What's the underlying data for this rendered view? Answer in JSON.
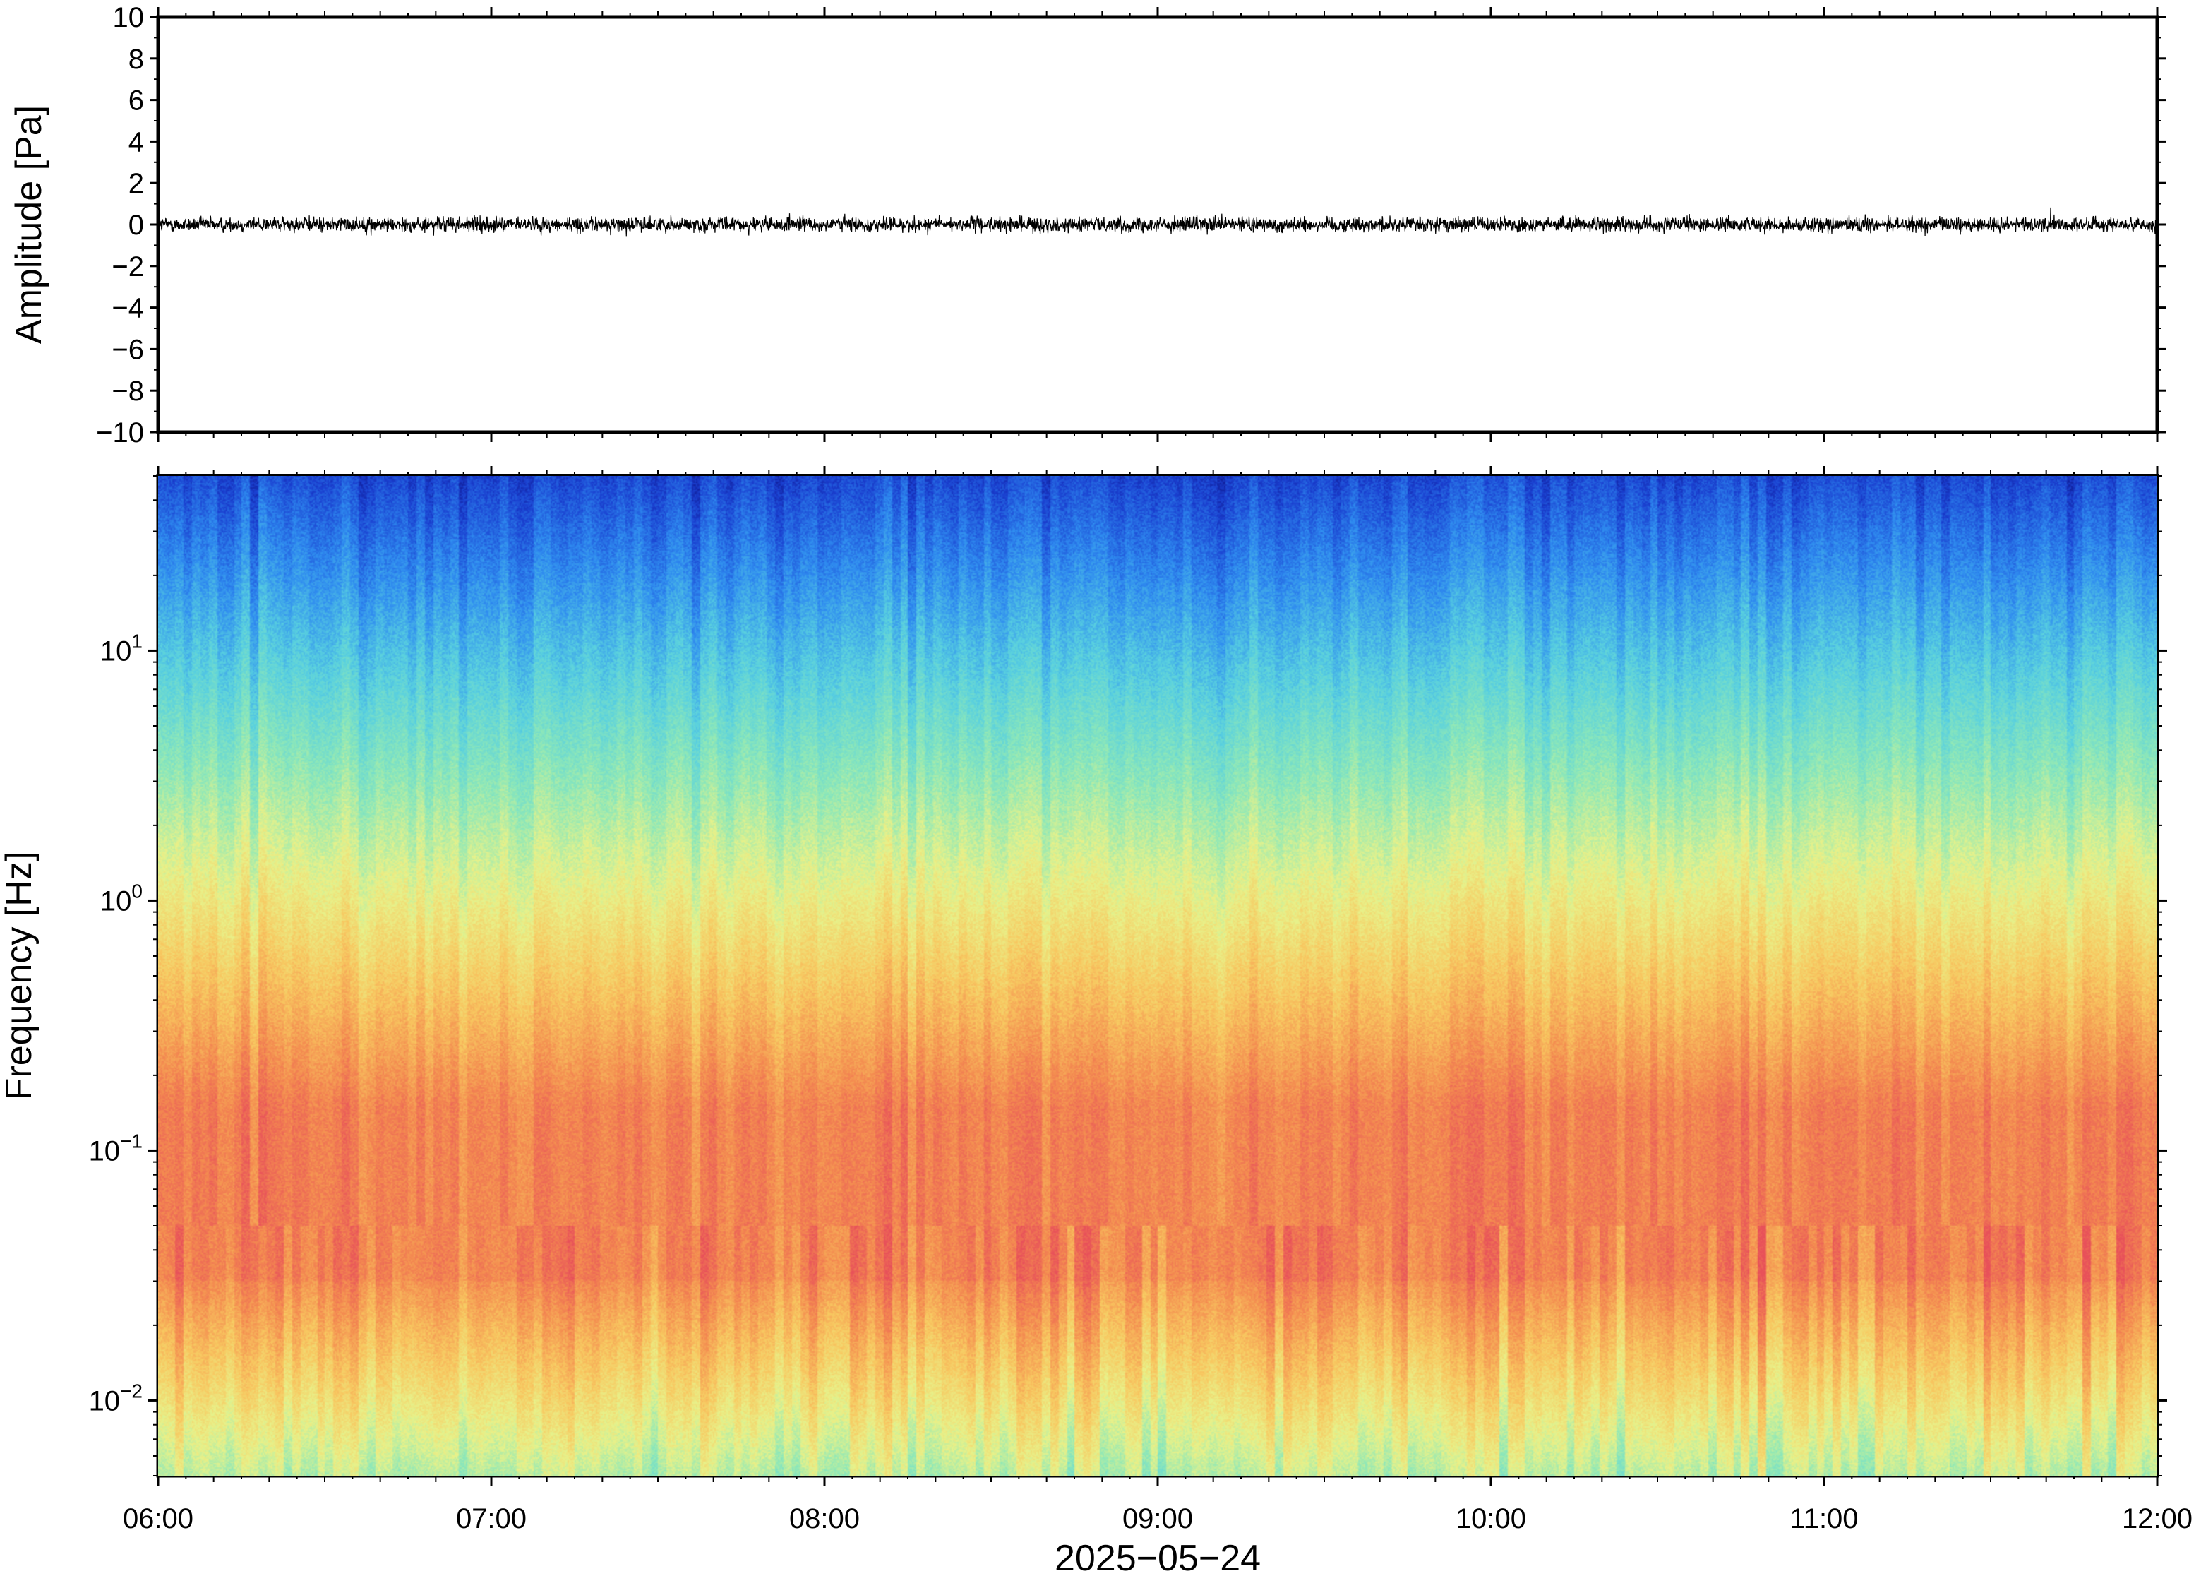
{
  "chart_data": [
    {
      "type": "line",
      "panel": "waveform",
      "ylabel": "Amplitude [Pa]",
      "ylim": [
        -10,
        10
      ],
      "yticks": [
        10,
        8,
        6,
        4,
        2,
        0,
        -2,
        -4,
        -6,
        -8,
        -10
      ],
      "ytick_labels": [
        "10",
        "8",
        "6",
        "4",
        "2",
        "0",
        "−2",
        "−4",
        "−6",
        "−8",
        "−10"
      ],
      "xlim": [
        "06:00",
        "12:00"
      ],
      "series": [
        {
          "color": "#000000",
          "amplitude_typical": 0.5,
          "amplitude_peak": 1.2
        }
      ]
    },
    {
      "type": "heatmap",
      "panel": "spectrogram",
      "ylabel": "Frequency [Hz]",
      "yscale": "log",
      "ylim": [
        0.005,
        50
      ],
      "ytick_labels": [
        {
          "base": "10",
          "exp": "1",
          "value": 10
        },
        {
          "base": "10",
          "exp": "0",
          "value": 1
        },
        {
          "base": "10",
          "exp": "−1",
          "value": 0.1
        },
        {
          "base": "10",
          "exp": "−2",
          "value": 0.01
        }
      ],
      "xlim": [
        "06:00",
        "12:00"
      ],
      "xticks": [
        "06:00",
        "07:00",
        "08:00",
        "09:00",
        "10:00",
        "11:00",
        "12:00"
      ],
      "xlabel": "2025−05−24",
      "colormap": "jet-like (dark blue = low, red = high)",
      "colormap_stops": [
        "#0a0a78",
        "#1a3fd0",
        "#2f8cf0",
        "#58d0e0",
        "#8ee8b8",
        "#e8f28a",
        "#f8c860",
        "#f48c50",
        "#e8505a"
      ],
      "dominant_band_hz": [
        0.03,
        0.15
      ]
    }
  ]
}
